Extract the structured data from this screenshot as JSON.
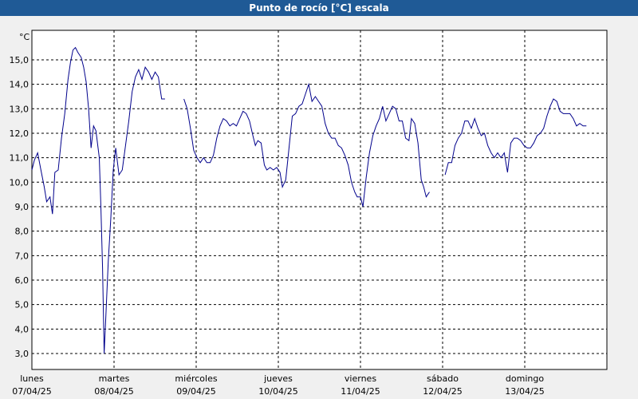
{
  "window": {
    "title": "Punto de rocío [°C] escala"
  },
  "chart_data": {
    "type": "line",
    "title": "Punto de rocío [°C] escala",
    "yunit": "°C",
    "xlabel": "",
    "ylabel": "",
    "ylim": [
      2.5,
      16.4
    ],
    "xlim": [
      0,
      7.02
    ],
    "grid": true,
    "yticks": [
      "3,0",
      "4,0",
      "5,0",
      "6,0",
      "7,0",
      "8,0",
      "9,0",
      "10,0",
      "11,0",
      "12,0",
      "13,0",
      "14,0",
      "15,0"
    ],
    "ytick_values": [
      3,
      4,
      5,
      6,
      7,
      8,
      9,
      10,
      11,
      12,
      13,
      14,
      15
    ],
    "xticks": [
      {
        "day": "lunes",
        "date": "07/04/25"
      },
      {
        "day": "martes",
        "date": "08/04/25"
      },
      {
        "day": "miércoles",
        "date": "09/04/25"
      },
      {
        "day": "jueves",
        "date": "10/04/25"
      },
      {
        "day": "viernes",
        "date": "11/04/25"
      },
      {
        "day": "sábado",
        "date": "12/04/25"
      },
      {
        "day": "domingo",
        "date": "13/04/25"
      }
    ],
    "line_color": "#00008b",
    "series": [
      {
        "segments": [
          [
            [
              0.0,
              10.5
            ],
            [
              0.03,
              10.9
            ],
            [
              0.07,
              11.2
            ],
            [
              0.11,
              10.5
            ],
            [
              0.15,
              9.8
            ],
            [
              0.18,
              9.2
            ],
            [
              0.22,
              9.4
            ],
            [
              0.25,
              8.7
            ],
            [
              0.28,
              10.4
            ],
            [
              0.32,
              10.5
            ],
            [
              0.36,
              11.8
            ],
            [
              0.4,
              12.8
            ],
            [
              0.44,
              14.2
            ],
            [
              0.47,
              14.9
            ],
            [
              0.5,
              15.4
            ],
            [
              0.53,
              15.5
            ],
            [
              0.56,
              15.3
            ],
            [
              0.6,
              15.1
            ],
            [
              0.63,
              14.7
            ],
            [
              0.66,
              14.1
            ],
            [
              0.69,
              13.0
            ],
            [
              0.72,
              11.4
            ],
            [
              0.75,
              12.3
            ],
            [
              0.78,
              12.1
            ],
            [
              0.82,
              11.0
            ],
            [
              0.84,
              9.0
            ],
            [
              0.86,
              6.5
            ],
            [
              0.88,
              3.0
            ],
            [
              0.9,
              4.5
            ],
            [
              0.93,
              6.8
            ],
            [
              0.96,
              8.5
            ],
            [
              0.99,
              10.5
            ],
            [
              1.02,
              11.4
            ],
            [
              1.06,
              10.3
            ],
            [
              1.1,
              10.5
            ],
            [
              1.14,
              11.5
            ],
            [
              1.18,
              12.5
            ],
            [
              1.22,
              13.7
            ],
            [
              1.26,
              14.3
            ],
            [
              1.3,
              14.6
            ],
            [
              1.34,
              14.2
            ],
            [
              1.38,
              14.7
            ],
            [
              1.42,
              14.5
            ],
            [
              1.46,
              14.2
            ],
            [
              1.5,
              14.5
            ],
            [
              1.54,
              14.3
            ],
            [
              1.58,
              13.4
            ],
            [
              1.62,
              13.4
            ]
          ],
          [
            [
              1.85,
              13.4
            ],
            [
              1.89,
              13.0
            ],
            [
              1.93,
              12.2
            ],
            [
              1.97,
              11.3
            ],
            [
              2.01,
              11.0
            ],
            [
              2.05,
              10.8
            ],
            [
              2.09,
              11.0
            ],
            [
              2.13,
              10.8
            ],
            [
              2.17,
              10.8
            ],
            [
              2.21,
              11.1
            ],
            [
              2.25,
              11.8
            ],
            [
              2.29,
              12.3
            ],
            [
              2.33,
              12.6
            ],
            [
              2.37,
              12.5
            ],
            [
              2.41,
              12.3
            ],
            [
              2.45,
              12.4
            ],
            [
              2.49,
              12.3
            ],
            [
              2.53,
              12.6
            ],
            [
              2.57,
              12.9
            ],
            [
              2.61,
              12.8
            ],
            [
              2.65,
              12.5
            ],
            [
              2.69,
              11.9
            ],
            [
              2.72,
              11.5
            ],
            [
              2.75,
              11.7
            ],
            [
              2.79,
              11.6
            ],
            [
              2.83,
              10.7
            ],
            [
              2.86,
              10.5
            ],
            [
              2.9,
              10.6
            ],
            [
              2.94,
              10.5
            ],
            [
              2.98,
              10.6
            ],
            [
              3.02,
              10.4
            ],
            [
              3.05,
              9.8
            ],
            [
              3.09,
              10.1
            ],
            [
              3.13,
              11.4
            ],
            [
              3.17,
              12.7
            ],
            [
              3.21,
              12.8
            ],
            [
              3.25,
              13.1
            ],
            [
              3.29,
              13.2
            ],
            [
              3.33,
              13.6
            ],
            [
              3.37,
              14.0
            ],
            [
              3.41,
              13.3
            ],
            [
              3.45,
              13.5
            ],
            [
              3.49,
              13.3
            ],
            [
              3.53,
              13.1
            ],
            [
              3.57,
              12.4
            ],
            [
              3.61,
              12.0
            ],
            [
              3.65,
              11.8
            ],
            [
              3.69,
              11.8
            ],
            [
              3.73,
              11.5
            ],
            [
              3.77,
              11.4
            ],
            [
              3.81,
              11.1
            ],
            [
              3.85,
              10.7
            ],
            [
              3.89,
              10.0
            ],
            [
              3.93,
              9.6
            ],
            [
              3.96,
              9.4
            ],
            [
              4.0,
              9.4
            ],
            [
              4.03,
              9.0
            ],
            [
              4.07,
              10.2
            ],
            [
              4.11,
              11.2
            ],
            [
              4.15,
              11.9
            ],
            [
              4.19,
              12.3
            ],
            [
              4.23,
              12.6
            ],
            [
              4.27,
              13.1
            ],
            [
              4.31,
              12.5
            ],
            [
              4.35,
              12.8
            ],
            [
              4.39,
              13.1
            ],
            [
              4.43,
              13.0
            ],
            [
              4.47,
              12.5
            ],
            [
              4.51,
              12.5
            ],
            [
              4.55,
              11.8
            ],
            [
              4.59,
              11.7
            ],
            [
              4.62,
              12.6
            ],
            [
              4.66,
              12.4
            ],
            [
              4.7,
              11.6
            ],
            [
              4.74,
              10.1
            ],
            [
              4.77,
              9.8
            ],
            [
              4.8,
              9.4
            ],
            [
              4.84,
              9.6
            ]
          ],
          [
            [
              5.03,
              10.3
            ],
            [
              5.07,
              10.8
            ],
            [
              5.11,
              10.8
            ],
            [
              5.15,
              11.5
            ],
            [
              5.19,
              11.8
            ],
            [
              5.23,
              12.0
            ],
            [
              5.27,
              12.5
            ],
            [
              5.31,
              12.5
            ],
            [
              5.35,
              12.2
            ],
            [
              5.39,
              12.6
            ],
            [
              5.43,
              12.2
            ],
            [
              5.47,
              11.9
            ],
            [
              5.51,
              12.0
            ],
            [
              5.55,
              11.5
            ],
            [
              5.59,
              11.2
            ],
            [
              5.63,
              11.0
            ],
            [
              5.67,
              11.2
            ],
            [
              5.71,
              11.0
            ],
            [
              5.75,
              11.2
            ],
            [
              5.79,
              10.4
            ],
            [
              5.83,
              11.6
            ],
            [
              5.87,
              11.8
            ],
            [
              5.91,
              11.8
            ],
            [
              5.95,
              11.7
            ],
            [
              5.99,
              11.5
            ],
            [
              6.03,
              11.4
            ],
            [
              6.07,
              11.4
            ],
            [
              6.11,
              11.6
            ],
            [
              6.15,
              11.9
            ],
            [
              6.19,
              12.0
            ],
            [
              6.23,
              12.2
            ],
            [
              6.27,
              12.7
            ],
            [
              6.31,
              13.1
            ],
            [
              6.35,
              13.4
            ],
            [
              6.39,
              13.3
            ],
            [
              6.43,
              12.9
            ],
            [
              6.47,
              12.8
            ],
            [
              6.51,
              12.8
            ],
            [
              6.55,
              12.8
            ],
            [
              6.59,
              12.6
            ],
            [
              6.63,
              12.3
            ],
            [
              6.67,
              12.4
            ],
            [
              6.71,
              12.3
            ],
            [
              6.75,
              12.3
            ]
          ]
        ]
      }
    ]
  }
}
